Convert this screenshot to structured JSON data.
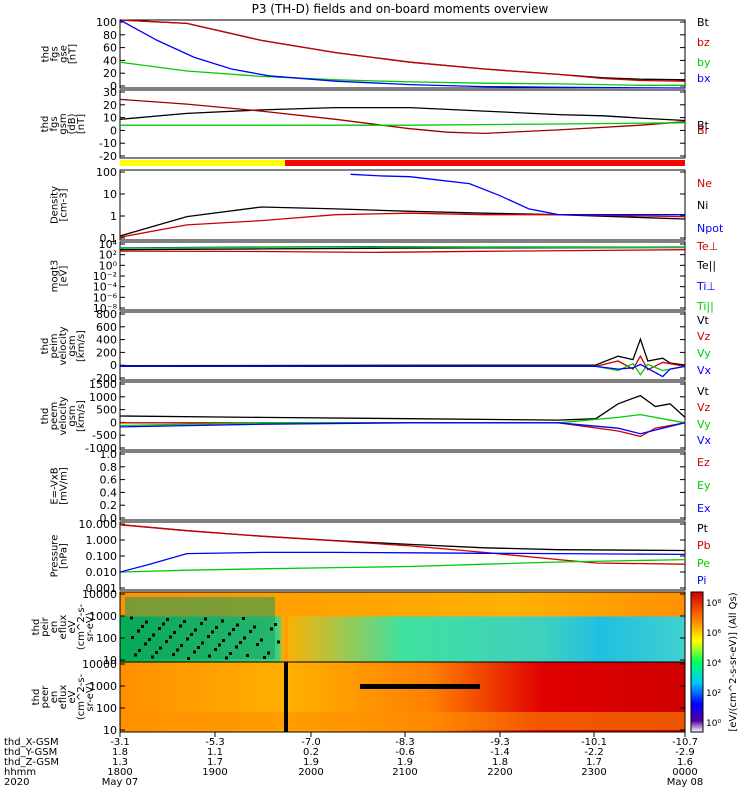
{
  "title": "P3 (TH-D) fields and on-board moments overview",
  "colors": {
    "black": "#000000",
    "red": "#cc0000",
    "green": "#00cc00",
    "blue": "#0000ff",
    "yellow": "#ffff00",
    "darkred": "#990000"
  },
  "chart_data": [
    {
      "type": "line",
      "ylabel_lines": [
        "thd",
        "fgs",
        "gse",
        "[nT]"
      ],
      "ylim": [
        0,
        100
      ],
      "yticks": [
        "100",
        "80",
        "60",
        "40",
        "20",
        "0"
      ],
      "legend": [
        "Bt",
        "bz",
        "by",
        "bx"
      ],
      "series": [
        {
          "name": "Bt",
          "color": "black",
          "x": [
            -3.1,
            -4,
            -5,
            -6,
            -7,
            -8,
            -9,
            -9.6,
            -10.1,
            -10.7
          ],
          "y": [
            130,
            95,
            70,
            52,
            38,
            28,
            20,
            15,
            13,
            12
          ]
        },
        {
          "name": "bz",
          "color": "red",
          "x": [
            -3.1,
            -4,
            -5,
            -6,
            -7,
            -8,
            -9,
            -9.6,
            -10.1,
            -10.7
          ],
          "y": [
            130,
            95,
            70,
            52,
            38,
            28,
            20,
            14,
            11,
            10
          ]
        },
        {
          "name": "by",
          "color": "green",
          "x": [
            -3.1,
            -4,
            -5,
            -6,
            -7,
            -8,
            -9,
            -9.6,
            -10.1,
            -10.7
          ],
          "y": [
            38,
            25,
            17,
            12,
            9,
            7,
            6,
            5,
            4,
            4
          ]
        },
        {
          "name": "bx",
          "color": "blue",
          "x": [
            -3.1,
            -3.6,
            -4.1,
            -4.6,
            -5.1,
            -6,
            -7,
            -8,
            -9,
            -10.7
          ],
          "y": [
            100,
            70,
            45,
            28,
            18,
            10,
            5,
            2,
            1,
            0
          ]
        }
      ]
    },
    {
      "type": "line",
      "ylabel_lines": [
        "thd",
        "fgs",
        "gsm",
        "(dB)",
        "[nT]"
      ],
      "ylim": [
        -28,
        30
      ],
      "yticks": [
        "30",
        "20",
        "10",
        "0",
        "-10",
        "-20"
      ],
      "legend": [
        "Bt",
        "Br"
      ],
      "series": [
        {
          "name": "Bt",
          "color": "black",
          "x": [
            -3.1,
            -4,
            -5,
            -6,
            -7,
            -8,
            -9,
            -9.6,
            -10.1,
            -10.7
          ],
          "y": [
            5,
            10,
            13,
            15,
            15,
            12,
            9,
            8,
            6,
            4
          ]
        },
        {
          "name": "Br",
          "color": "darkred",
          "x": [
            -3.1,
            -4,
            -5,
            -6,
            -7,
            -7.5,
            -8,
            -9,
            -10.1,
            -10.7
          ],
          "y": [
            22,
            18,
            12,
            5,
            -3,
            -6,
            -7,
            -4,
            0,
            3
          ]
        },
        {
          "name": "",
          "color": "green",
          "x": [
            -3.1,
            -5,
            -7,
            -9,
            -10.7
          ],
          "y": [
            0,
            0,
            0,
            1,
            2
          ]
        }
      ]
    },
    {
      "type": "line",
      "ylabel_lines": [
        "Density",
        "[cm-3]"
      ],
      "ylim": [
        0.05,
        200
      ],
      "log": true,
      "yticks": [
        "100",
        "10",
        "1",
        "0.1"
      ],
      "legend": [
        "Ne",
        "Ni",
        "Npot"
      ],
      "series": [
        {
          "name": "Ni",
          "color": "black",
          "x": [
            -3.1,
            -4,
            -5,
            -6,
            -7,
            -8,
            -9,
            -10.7
          ],
          "y": [
            0.08,
            0.8,
            2.5,
            2.0,
            1.5,
            1.2,
            1.0,
            0.6
          ]
        },
        {
          "name": "Ne",
          "color": "red",
          "x": [
            -3.1,
            -4,
            -5,
            -6,
            -7,
            -8,
            -9,
            -10.7
          ],
          "y": [
            0.07,
            0.3,
            0.5,
            1.0,
            1.2,
            1.0,
            1.0,
            0.8
          ]
        },
        {
          "name": "Npot",
          "color": "blue",
          "x": [
            -6.2,
            -6.6,
            -7,
            -7.4,
            -7.8,
            -8.2,
            -8.6,
            -9,
            -10.7
          ],
          "y": [
            120,
            100,
            90,
            60,
            40,
            10,
            2,
            1,
            1
          ]
        }
      ]
    },
    {
      "type": "line",
      "ylabel_lines": [
        "mogt3",
        "[eV]"
      ],
      "ylim": [
        1e-10,
        100000.0
      ],
      "log": true,
      "yticks": [
        "10⁴",
        "10²",
        "10⁰",
        "10⁻²",
        "10⁻⁴",
        "10⁻⁶",
        "10⁻⁸"
      ],
      "legend": [
        "Te⊥",
        "Te||",
        "Ti⊥",
        "Ti||"
      ],
      "series": [
        {
          "name": "Te⊥",
          "color": "red",
          "x": [
            -3.1,
            -5,
            -6.5,
            -8,
            -10.7
          ],
          "y": [
            1000,
            800,
            500,
            900,
            2000
          ]
        },
        {
          "name": "Te||",
          "color": "black",
          "x": [
            -3.1,
            -5,
            -6.5,
            -8,
            -10.7
          ],
          "y": [
            2000,
            3000,
            4000,
            5000,
            6000
          ]
        },
        {
          "name": "Ti⊥",
          "color": "blue",
          "x": [
            -3.1,
            -5,
            -6.5,
            -8,
            -10.7
          ],
          "y": [
            5000,
            8000,
            9000,
            8000,
            7000
          ]
        },
        {
          "name": "Ti||",
          "color": "green",
          "x": [
            -3.1,
            -5,
            -6.5,
            -8,
            -10.7
          ],
          "y": [
            4000,
            7000,
            8000,
            7000,
            6000
          ]
        }
      ]
    },
    {
      "type": "line",
      "ylabel_lines": [
        "thd",
        "peim",
        "velocity",
        "gsm",
        "[km/s]"
      ],
      "ylim": [
        -200,
        800
      ],
      "yticks": [
        "800",
        "600",
        "400",
        "200",
        "0",
        "-200"
      ],
      "legend": [
        "Vt",
        "Vz",
        "Vy",
        "Vx"
      ],
      "series": [
        {
          "name": "Vt",
          "color": "black",
          "x": [
            -3.1,
            -9.5,
            -9.8,
            -10.0,
            -10.1,
            -10.2,
            -10.4,
            -10.5,
            -10.7
          ],
          "y": [
            10,
            20,
            150,
            100,
            400,
            80,
            120,
            50,
            20
          ]
        },
        {
          "name": "Vz",
          "color": "red",
          "x": [
            -3.1,
            -9.5,
            -9.8,
            -10.0,
            -10.1,
            -10.2,
            -10.4,
            -10.7
          ],
          "y": [
            0,
            0,
            80,
            -40,
            150,
            -50,
            60,
            0
          ]
        },
        {
          "name": "Vy",
          "color": "green",
          "x": [
            -3.1,
            -9.5,
            -9.8,
            -10.0,
            -10.1,
            -10.2,
            -10.4,
            -10.7
          ],
          "y": [
            0,
            0,
            -60,
            40,
            -120,
            30,
            -60,
            0
          ]
        },
        {
          "name": "Vx",
          "color": "blue",
          "x": [
            -3.1,
            -9.5,
            -9.8,
            -10.0,
            -10.1,
            -10.4,
            -10.5,
            -10.7
          ],
          "y": [
            0,
            0,
            -40,
            -20,
            30,
            -150,
            -40,
            0
          ]
        }
      ]
    },
    {
      "type": "line",
      "ylabel_lines": [
        "thd",
        "peem",
        "velocity",
        "gsm",
        "[km/s]"
      ],
      "ylim": [
        -1000,
        1500
      ],
      "yticks": [
        "1500",
        "1000",
        "500",
        "0",
        "-500",
        "-1000"
      ],
      "legend": [
        "Vt",
        "Vz",
        "Vy",
        "Vx"
      ],
      "series": [
        {
          "name": "Vt",
          "color": "black",
          "x": [
            -3.1,
            -5,
            -7,
            -9,
            -9.5,
            -9.8,
            -10.1,
            -10.3,
            -10.5,
            -10.7
          ],
          "y": [
            250,
            200,
            150,
            100,
            150,
            700,
            1000,
            600,
            700,
            200
          ]
        },
        {
          "name": "Vz",
          "color": "red",
          "x": [
            -3.1,
            -5,
            -7,
            -9,
            -9.8,
            -10.1,
            -10.3,
            -10.7
          ],
          "y": [
            0,
            0,
            0,
            0,
            -300,
            -500,
            -200,
            0
          ]
        },
        {
          "name": "Vy",
          "color": "green",
          "x": [
            -3.1,
            -5,
            -7,
            -9,
            -9.8,
            -10.1,
            -10.7
          ],
          "y": [
            -100,
            0,
            0,
            0,
            200,
            300,
            0
          ]
        },
        {
          "name": "Vx",
          "color": "blue",
          "x": [
            -3.1,
            -5,
            -7,
            -9,
            -9.8,
            -10.1,
            -10.7
          ],
          "y": [
            -150,
            -50,
            0,
            0,
            -200,
            -400,
            0
          ]
        }
      ]
    },
    {
      "type": "line",
      "ylabel_lines": [
        "E=-VxB",
        "[mV/m]"
      ],
      "ylim": [
        0,
        1
      ],
      "yticks": [
        "1.0",
        "0.8",
        "0.6",
        "0.4",
        "0.2",
        "0.0"
      ],
      "legend": [
        "Ez",
        "Ey",
        "Ex"
      ],
      "series": []
    },
    {
      "type": "line",
      "ylabel_lines": [
        "Pressure",
        "[nPa]"
      ],
      "ylim": [
        0.001,
        30
      ],
      "log": true,
      "yticks": [
        "10.000",
        "1.000",
        "0.100",
        "0.010",
        "0.001"
      ],
      "legend": [
        "Pt",
        "Pb",
        "Pe",
        "Pi"
      ],
      "series": [
        {
          "name": "Pt",
          "color": "black",
          "x": [
            -3.1,
            -4,
            -5,
            -6,
            -7,
            -8,
            -9,
            -10.7
          ],
          "y": [
            20,
            8,
            3.5,
            1.8,
            1.0,
            0.6,
            0.45,
            0.4
          ]
        },
        {
          "name": "Pb",
          "color": "red",
          "x": [
            -3.1,
            -4,
            -5,
            -6,
            -7,
            -8,
            -9,
            -9.5,
            -10.7
          ],
          "y": [
            20,
            8,
            3.5,
            1.7,
            0.8,
            0.3,
            0.1,
            0.06,
            0.05
          ]
        },
        {
          "name": "Pe",
          "color": "green",
          "x": [
            -3.1,
            -4,
            -5,
            -6,
            -7,
            -8,
            -9,
            -10.7
          ],
          "y": [
            0.015,
            0.02,
            0.025,
            0.03,
            0.035,
            0.05,
            0.07,
            0.1
          ]
        },
        {
          "name": "Pi",
          "color": "blue",
          "x": [
            -3.1,
            -3.5,
            -4,
            -5,
            -6,
            -7,
            -8,
            -9,
            -10.7
          ],
          "y": [
            0.015,
            0.05,
            0.25,
            0.3,
            0.3,
            0.28,
            0.26,
            0.25,
            0.22
          ]
        }
      ]
    },
    {
      "type": "heatmap",
      "ylabel_lines": [
        "thd",
        "peir",
        "en",
        "eflux",
        "eV",
        "(cm^2-s-",
        "sr-eV)"
      ],
      "yticks": [
        "10000",
        "1000",
        "100",
        "10"
      ]
    },
    {
      "type": "heatmap",
      "ylabel_lines": [
        "thd",
        "peer",
        "en",
        "eflux",
        "eV",
        "(cm^2-s-",
        "sr-eV)"
      ],
      "yticks": [
        "10000",
        "1000",
        "100",
        "10"
      ]
    }
  ],
  "colorbar": {
    "label": "[eV/(cm^2-s-sr-eV)] (All Qs)",
    "ticks": [
      "10⁸",
      "10⁶",
      "10⁴",
      "10²",
      "10⁰"
    ]
  },
  "xaxis": {
    "rows": [
      {
        "label": "thd_X-GSM",
        "values": [
          "-3.1",
          "-5.3",
          "-7.0",
          "-8.3",
          "-9.3",
          "-10.1",
          "-10.7"
        ]
      },
      {
        "label": "thd_Y-GSM",
        "values": [
          "1.8",
          "1.1",
          "0.2",
          "-0.6",
          "-1.4",
          "-2.2",
          "-2.9"
        ]
      },
      {
        "label": "thd_Z-GSM",
        "values": [
          "1.3",
          "1.7",
          "1.9",
          "1.9",
          "1.8",
          "1.7",
          "1.6"
        ]
      },
      {
        "label": "hhmm",
        "values": [
          "1800",
          "1900",
          "2000",
          "2100",
          "2200",
          "2300",
          "0000"
        ]
      },
      {
        "label": "2020",
        "values": [
          "May 07",
          "",
          "",
          "",
          "",
          "",
          "May 08"
        ]
      }
    ]
  }
}
